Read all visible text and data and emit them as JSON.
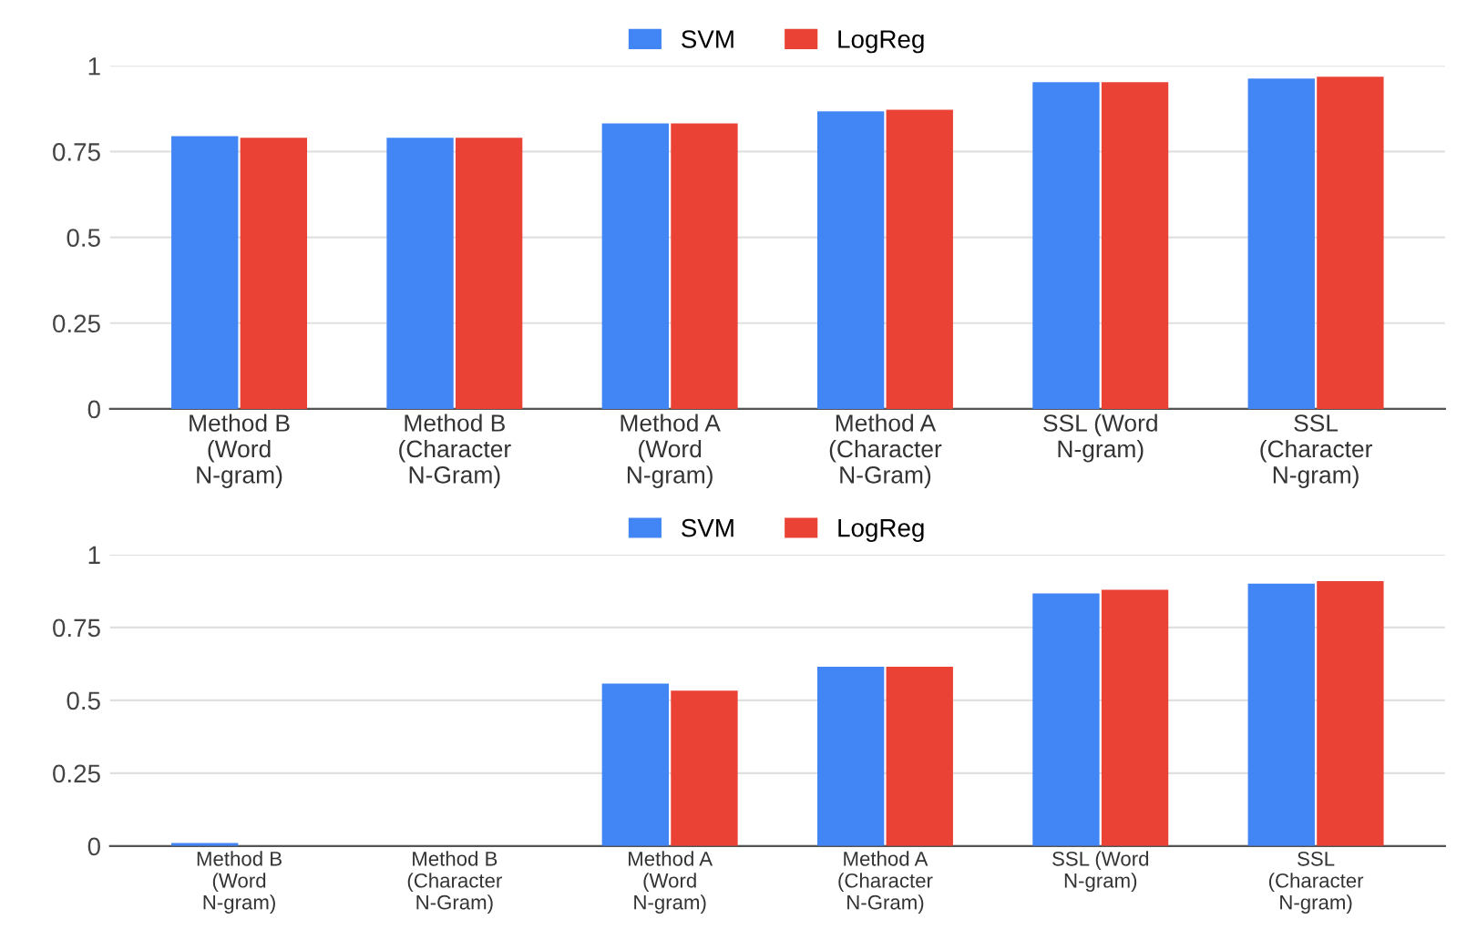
{
  "chart_data": [
    {
      "type": "bar",
      "categories": [
        "Method B\n(Word\nN-gram)",
        "Method B\n(Character\nN-Gram)",
        "Method A\n(Word\nN-gram)",
        "Method A\n(Character\nN-Gram)",
        "SSL (Word\nN-gram)",
        "SSL\n(Character\nN-gram)"
      ],
      "series": [
        {
          "name": "SVM",
          "color": "#4285f4",
          "values": [
            0.795,
            0.79,
            0.832,
            0.867,
            0.952,
            0.963
          ]
        },
        {
          "name": "LogReg",
          "color": "#ea4335",
          "values": [
            0.79,
            0.79,
            0.832,
            0.872,
            0.952,
            0.968
          ]
        }
      ],
      "ylim": [
        0,
        1
      ],
      "yticks": [
        0,
        0.25,
        0.5,
        0.75,
        1
      ],
      "grid": "y",
      "legend": "top"
    },
    {
      "type": "bar",
      "categories": [
        "Method B\n(Word\nN-gram)",
        "Method B\n(Character\nN-Gram)",
        "Method A\n(Word\nN-gram)",
        "Method A\n(Character\nN-Gram)",
        "SSL (Word\nN-gram)",
        "SSL\n(Character\nN-gram)"
      ],
      "series": [
        {
          "name": "SVM",
          "color": "#4285f4",
          "values": [
            0.01,
            0,
            0.557,
            0.615,
            0.867,
            0.9
          ]
        },
        {
          "name": "LogReg",
          "color": "#ea4335",
          "values": [
            0,
            0,
            0.533,
            0.615,
            0.879,
            0.909
          ]
        }
      ],
      "ylim": [
        0,
        1
      ],
      "yticks": [
        0,
        0.25,
        0.5,
        0.75,
        1
      ],
      "grid": "y",
      "legend": "top"
    }
  ]
}
